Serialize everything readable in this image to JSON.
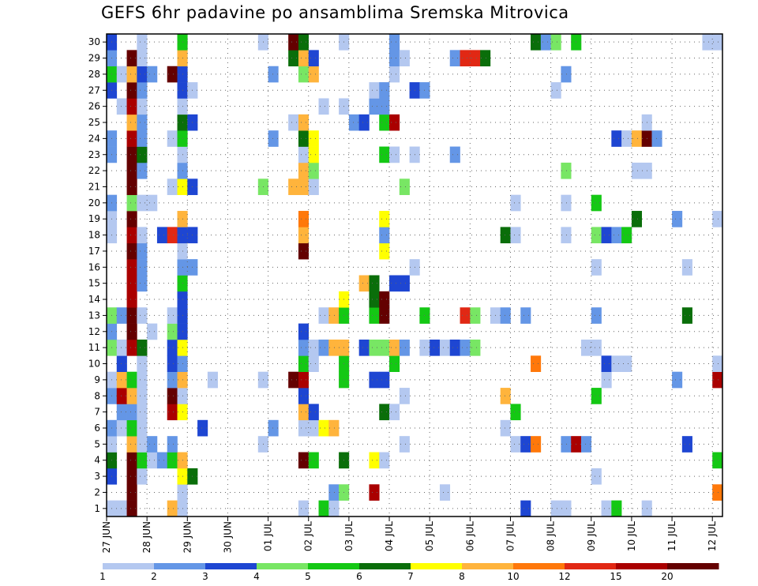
{
  "title": "GEFS 6hr padavine po ansamblima Sremska Mitrovica",
  "chart_data": {
    "type": "heatmap",
    "title": "GEFS 6hr padavine po ansamblima Sremska Mitrovica",
    "y_members": [
      1,
      2,
      3,
      4,
      5,
      6,
      7,
      8,
      9,
      10,
      11,
      12,
      13,
      14,
      15,
      16,
      17,
      18,
      19,
      20,
      21,
      22,
      23,
      24,
      25,
      26,
      27,
      28,
      29,
      30
    ],
    "x_tick_labels": [
      "27 JUN",
      "28 JUN",
      "29 JUN",
      "30 JUN",
      "01 JUL",
      "02 JUL",
      "03 JUL",
      "04 JUL",
      "05 JUL",
      "06 JUL",
      "07 JUL",
      "08 JUL",
      "09 JUL",
      "10 JUL",
      "11 JUL",
      "12 JUL"
    ],
    "time_step_hours": 6,
    "colorbar": {
      "labels": [
        "1",
        "2",
        "3",
        "4",
        "5",
        "6",
        "7",
        "8",
        "10",
        "12",
        "15",
        "20"
      ],
      "colors": [
        "#b4c8f0",
        "#6496e6",
        "#1e46d2",
        "#78e664",
        "#14c814",
        "#0a6e0a",
        "#ffff00",
        "#ffb43c",
        "#ff780a",
        "#e12814",
        "#aa0000",
        "#640000"
      ]
    },
    "cells": [
      [
        1,
        0,
        1
      ],
      [
        1,
        1,
        1
      ],
      [
        1,
        2,
        12
      ],
      [
        1,
        6,
        8
      ],
      [
        1,
        7,
        1
      ],
      [
        1,
        19,
        1
      ],
      [
        1,
        21,
        5
      ],
      [
        1,
        22,
        1
      ],
      [
        1,
        41,
        3
      ],
      [
        1,
        44,
        1
      ],
      [
        1,
        45,
        1
      ],
      [
        1,
        49,
        1
      ],
      [
        1,
        50,
        5
      ],
      [
        1,
        53,
        1
      ],
      [
        2,
        2,
        12
      ],
      [
        2,
        7,
        1
      ],
      [
        2,
        22,
        2
      ],
      [
        2,
        23,
        4
      ],
      [
        2,
        26,
        11
      ],
      [
        2,
        33,
        1
      ],
      [
        2,
        60,
        9
      ],
      [
        3,
        0,
        3
      ],
      [
        3,
        2,
        12
      ],
      [
        3,
        3,
        1
      ],
      [
        3,
        7,
        7
      ],
      [
        3,
        8,
        6
      ],
      [
        3,
        48,
        1
      ],
      [
        4,
        0,
        6
      ],
      [
        4,
        2,
        12
      ],
      [
        4,
        3,
        5
      ],
      [
        4,
        4,
        1
      ],
      [
        4,
        5,
        2
      ],
      [
        4,
        6,
        5
      ],
      [
        4,
        7,
        8
      ],
      [
        4,
        19,
        12
      ],
      [
        4,
        20,
        5
      ],
      [
        4,
        23,
        6
      ],
      [
        4,
        26,
        7
      ],
      [
        4,
        27,
        1
      ],
      [
        4,
        60,
        5
      ],
      [
        5,
        0,
        1
      ],
      [
        5,
        2,
        8
      ],
      [
        5,
        3,
        1
      ],
      [
        5,
        4,
        2
      ],
      [
        5,
        6,
        2
      ],
      [
        5,
        15,
        1
      ],
      [
        5,
        29,
        1
      ],
      [
        5,
        40,
        1
      ],
      [
        5,
        41,
        3
      ],
      [
        5,
        42,
        9
      ],
      [
        5,
        45,
        2
      ],
      [
        5,
        46,
        11
      ],
      [
        5,
        47,
        2
      ],
      [
        5,
        57,
        3
      ],
      [
        6,
        0,
        2
      ],
      [
        6,
        1,
        1
      ],
      [
        6,
        2,
        5
      ],
      [
        6,
        3,
        1
      ],
      [
        6,
        9,
        3
      ],
      [
        6,
        16,
        2
      ],
      [
        6,
        19,
        1
      ],
      [
        6,
        20,
        1
      ],
      [
        6,
        21,
        7
      ],
      [
        6,
        22,
        8
      ],
      [
        6,
        39,
        1
      ],
      [
        7,
        1,
        2
      ],
      [
        7,
        2,
        2
      ],
      [
        7,
        3,
        1
      ],
      [
        7,
        6,
        11
      ],
      [
        7,
        7,
        7
      ],
      [
        7,
        19,
        8
      ],
      [
        7,
        20,
        3
      ],
      [
        7,
        27,
        6
      ],
      [
        7,
        28,
        1
      ],
      [
        7,
        40,
        5
      ],
      [
        8,
        0,
        2
      ],
      [
        8,
        1,
        11
      ],
      [
        8,
        2,
        8
      ],
      [
        8,
        3,
        1
      ],
      [
        8,
        6,
        12
      ],
      [
        8,
        7,
        1
      ],
      [
        8,
        19,
        3
      ],
      [
        8,
        29,
        1
      ],
      [
        8,
        39,
        8
      ],
      [
        8,
        48,
        5
      ],
      [
        9,
        0,
        1
      ],
      [
        9,
        1,
        8
      ],
      [
        9,
        2,
        5
      ],
      [
        9,
        3,
        1
      ],
      [
        9,
        6,
        2
      ],
      [
        9,
        7,
        8
      ],
      [
        9,
        10,
        1
      ],
      [
        9,
        15,
        1
      ],
      [
        9,
        18,
        12
      ],
      [
        9,
        19,
        11
      ],
      [
        9,
        23,
        5
      ],
      [
        9,
        26,
        3
      ],
      [
        9,
        27,
        3
      ],
      [
        9,
        49,
        1
      ],
      [
        9,
        56,
        2
      ],
      [
        9,
        60,
        11
      ],
      [
        10,
        1,
        3
      ],
      [
        10,
        3,
        1
      ],
      [
        10,
        6,
        3
      ],
      [
        10,
        7,
        2
      ],
      [
        10,
        19,
        5
      ],
      [
        10,
        20,
        1
      ],
      [
        10,
        23,
        5
      ],
      [
        10,
        28,
        5
      ],
      [
        10,
        42,
        9
      ],
      [
        10,
        49,
        3
      ],
      [
        10,
        50,
        1
      ],
      [
        10,
        51,
        1
      ],
      [
        10,
        60,
        1
      ],
      [
        11,
        0,
        4
      ],
      [
        11,
        1,
        1
      ],
      [
        11,
        2,
        11
      ],
      [
        11,
        3,
        6
      ],
      [
        11,
        6,
        3
      ],
      [
        11,
        7,
        7
      ],
      [
        11,
        19,
        2
      ],
      [
        11,
        20,
        1
      ],
      [
        11,
        21,
        2
      ],
      [
        11,
        22,
        8
      ],
      [
        11,
        23,
        8
      ],
      [
        11,
        25,
        3
      ],
      [
        11,
        26,
        4
      ],
      [
        11,
        27,
        4
      ],
      [
        11,
        28,
        8
      ],
      [
        11,
        29,
        2
      ],
      [
        11,
        31,
        1
      ],
      [
        11,
        32,
        3
      ],
      [
        11,
        33,
        1
      ],
      [
        11,
        34,
        3
      ],
      [
        11,
        35,
        2
      ],
      [
        11,
        36,
        4
      ],
      [
        11,
        47,
        1
      ],
      [
        11,
        48,
        1
      ],
      [
        12,
        0,
        2
      ],
      [
        12,
        2,
        12
      ],
      [
        12,
        4,
        1
      ],
      [
        12,
        6,
        4
      ],
      [
        12,
        7,
        3
      ],
      [
        12,
        19,
        3
      ],
      [
        13,
        0,
        4
      ],
      [
        13,
        1,
        2
      ],
      [
        13,
        2,
        12
      ],
      [
        13,
        3,
        1
      ],
      [
        13,
        6,
        1
      ],
      [
        13,
        7,
        3
      ],
      [
        13,
        21,
        1
      ],
      [
        13,
        22,
        8
      ],
      [
        13,
        23,
        5
      ],
      [
        13,
        26,
        5
      ],
      [
        13,
        27,
        12
      ],
      [
        13,
        31,
        5
      ],
      [
        13,
        35,
        10
      ],
      [
        13,
        36,
        4
      ],
      [
        13,
        38,
        1
      ],
      [
        13,
        39,
        2
      ],
      [
        13,
        41,
        2
      ],
      [
        13,
        48,
        2
      ],
      [
        13,
        57,
        6
      ],
      [
        14,
        2,
        11
      ],
      [
        14,
        7,
        3
      ],
      [
        14,
        23,
        7
      ],
      [
        14,
        26,
        6
      ],
      [
        14,
        27,
        12
      ],
      [
        15,
        2,
        11
      ],
      [
        15,
        3,
        2
      ],
      [
        15,
        7,
        5
      ],
      [
        15,
        25,
        8
      ],
      [
        15,
        26,
        6
      ],
      [
        15,
        28,
        3
      ],
      [
        15,
        29,
        3
      ],
      [
        16,
        2,
        11
      ],
      [
        16,
        3,
        2
      ],
      [
        16,
        7,
        2
      ],
      [
        16,
        8,
        2
      ],
      [
        16,
        30,
        1
      ],
      [
        16,
        48,
        1
      ],
      [
        16,
        57,
        1
      ],
      [
        17,
        2,
        12
      ],
      [
        17,
        3,
        2
      ],
      [
        17,
        7,
        1
      ],
      [
        17,
        19,
        12
      ],
      [
        17,
        27,
        7
      ],
      [
        18,
        0,
        1
      ],
      [
        18,
        2,
        11
      ],
      [
        18,
        3,
        1
      ],
      [
        18,
        5,
        3
      ],
      [
        18,
        6,
        10
      ],
      [
        18,
        7,
        3
      ],
      [
        18,
        8,
        3
      ],
      [
        18,
        19,
        8
      ],
      [
        18,
        27,
        2
      ],
      [
        18,
        39,
        6
      ],
      [
        18,
        40,
        1
      ],
      [
        18,
        45,
        1
      ],
      [
        18,
        48,
        4
      ],
      [
        18,
        49,
        3
      ],
      [
        18,
        50,
        2
      ],
      [
        18,
        51,
        5
      ],
      [
        19,
        0,
        1
      ],
      [
        19,
        2,
        12
      ],
      [
        19,
        7,
        8
      ],
      [
        19,
        19,
        9
      ],
      [
        19,
        27,
        7
      ],
      [
        19,
        52,
        6
      ],
      [
        19,
        56,
        2
      ],
      [
        19,
        60,
        1
      ],
      [
        20,
        0,
        2
      ],
      [
        20,
        2,
        4
      ],
      [
        20,
        3,
        1
      ],
      [
        20,
        4,
        1
      ],
      [
        20,
        40,
        1
      ],
      [
        20,
        45,
        1
      ],
      [
        20,
        48,
        5
      ],
      [
        21,
        2,
        12
      ],
      [
        21,
        6,
        1
      ],
      [
        21,
        7,
        7
      ],
      [
        21,
        8,
        3
      ],
      [
        21,
        15,
        4
      ],
      [
        21,
        18,
        8
      ],
      [
        21,
        19,
        8
      ],
      [
        21,
        20,
        1
      ],
      [
        21,
        29,
        4
      ],
      [
        22,
        2,
        12
      ],
      [
        22,
        3,
        2
      ],
      [
        22,
        7,
        2
      ],
      [
        22,
        19,
        8
      ],
      [
        22,
        20,
        4
      ],
      [
        22,
        45,
        4
      ],
      [
        22,
        52,
        1
      ],
      [
        22,
        53,
        1
      ],
      [
        23,
        0,
        2
      ],
      [
        23,
        2,
        12
      ],
      [
        23,
        3,
        6
      ],
      [
        23,
        7,
        1
      ],
      [
        23,
        19,
        1
      ],
      [
        23,
        20,
        7
      ],
      [
        23,
        27,
        5
      ],
      [
        23,
        28,
        1
      ],
      [
        23,
        30,
        1
      ],
      [
        23,
        34,
        2
      ],
      [
        24,
        0,
        2
      ],
      [
        24,
        2,
        11
      ],
      [
        24,
        3,
        2
      ],
      [
        24,
        6,
        1
      ],
      [
        24,
        7,
        5
      ],
      [
        24,
        16,
        2
      ],
      [
        24,
        19,
        6
      ],
      [
        24,
        20,
        7
      ],
      [
        24,
        50,
        3
      ],
      [
        24,
        51,
        1
      ],
      [
        24,
        52,
        8
      ],
      [
        24,
        53,
        12
      ],
      [
        24,
        54,
        2
      ],
      [
        25,
        2,
        8
      ],
      [
        25,
        3,
        2
      ],
      [
        25,
        7,
        6
      ],
      [
        25,
        8,
        3
      ],
      [
        25,
        18,
        1
      ],
      [
        25,
        19,
        8
      ],
      [
        25,
        24,
        2
      ],
      [
        25,
        25,
        3
      ],
      [
        25,
        27,
        5
      ],
      [
        25,
        28,
        11
      ],
      [
        25,
        53,
        1
      ],
      [
        26,
        1,
        1
      ],
      [
        26,
        2,
        11
      ],
      [
        26,
        3,
        1
      ],
      [
        26,
        7,
        1
      ],
      [
        26,
        21,
        1
      ],
      [
        26,
        23,
        1
      ],
      [
        26,
        26,
        2
      ],
      [
        26,
        27,
        2
      ],
      [
        27,
        0,
        3
      ],
      [
        27,
        2,
        12
      ],
      [
        27,
        3,
        2
      ],
      [
        27,
        7,
        3
      ],
      [
        27,
        8,
        1
      ],
      [
        27,
        26,
        1
      ],
      [
        27,
        27,
        2
      ],
      [
        27,
        30,
        3
      ],
      [
        27,
        31,
        2
      ],
      [
        27,
        44,
        1
      ],
      [
        28,
        0,
        5
      ],
      [
        28,
        1,
        1
      ],
      [
        28,
        2,
        8
      ],
      [
        28,
        3,
        3
      ],
      [
        28,
        4,
        2
      ],
      [
        28,
        6,
        12
      ],
      [
        28,
        7,
        3
      ],
      [
        28,
        16,
        2
      ],
      [
        28,
        19,
        4
      ],
      [
        28,
        20,
        8
      ],
      [
        28,
        28,
        1
      ],
      [
        28,
        45,
        2
      ],
      [
        29,
        0,
        2
      ],
      [
        29,
        2,
        12
      ],
      [
        29,
        3,
        1
      ],
      [
        29,
        7,
        8
      ],
      [
        29,
        18,
        6
      ],
      [
        29,
        19,
        8
      ],
      [
        29,
        20,
        3
      ],
      [
        29,
        28,
        2
      ],
      [
        29,
        29,
        1
      ],
      [
        29,
        34,
        2
      ],
      [
        29,
        35,
        10
      ],
      [
        29,
        36,
        10
      ],
      [
        29,
        37,
        6
      ],
      [
        30,
        0,
        3
      ],
      [
        30,
        3,
        1
      ],
      [
        30,
        7,
        5
      ],
      [
        30,
        15,
        1
      ],
      [
        30,
        18,
        12
      ],
      [
        30,
        19,
        6
      ],
      [
        30,
        23,
        1
      ],
      [
        30,
        28,
        2
      ],
      [
        30,
        42,
        6
      ],
      [
        30,
        43,
        2
      ],
      [
        30,
        44,
        4
      ],
      [
        30,
        46,
        5
      ],
      [
        30,
        59,
        1
      ],
      [
        30,
        60,
        1
      ]
    ]
  }
}
